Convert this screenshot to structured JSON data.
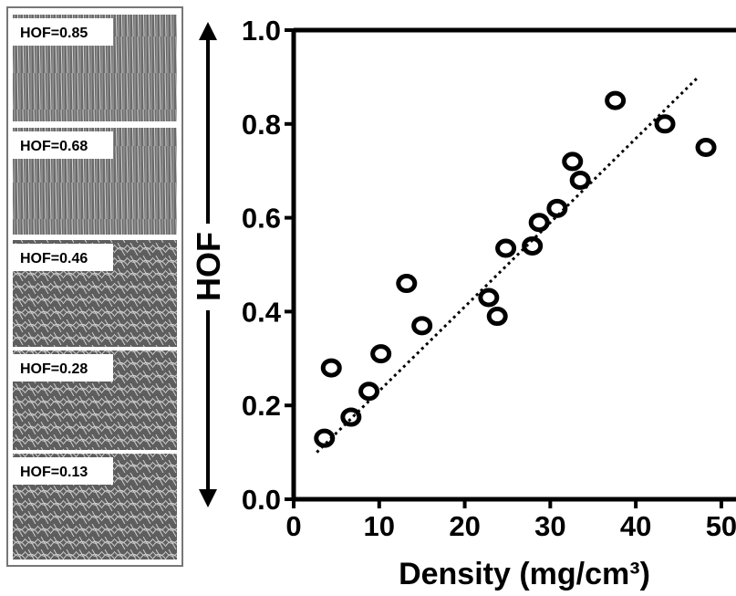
{
  "chart_data": {
    "type": "scatter",
    "panels": [
      "HOF=0.85",
      "HOF=0.68",
      "HOF=0.46",
      "HOF=0.28",
      "HOF=0.13"
    ],
    "y_label": "HOF",
    "x_label": "Density (mg/cm³)",
    "x": [
      3.6,
      4.4,
      6.7,
      8.8,
      10.2,
      13.2,
      15.0,
      22.8,
      23.8,
      24.8,
      27.9,
      28.7,
      30.8,
      32.6,
      33.5,
      37.6,
      43.4,
      48.2
    ],
    "values": [
      0.13,
      0.28,
      0.175,
      0.23,
      0.31,
      0.46,
      0.37,
      0.43,
      0.39,
      0.535,
      0.54,
      0.59,
      0.62,
      0.72,
      0.68,
      0.85,
      0.8,
      0.75
    ],
    "color": "#000000",
    "trend_line": {
      "x": [
        2.7,
        47.3
      ],
      "values": [
        0.1,
        0.9
      ]
    },
    "xlim": [
      0,
      51.5
    ],
    "ylim": [
      0,
      1
    ],
    "xticks": [
      0,
      10,
      20,
      30,
      40,
      50
    ],
    "yticks": [
      {
        "value": 0,
        "label": "0.0"
      },
      0.2,
      0.4,
      0.6,
      0.8,
      {
        "value": 1,
        "label": "1.0"
      }
    ]
  }
}
